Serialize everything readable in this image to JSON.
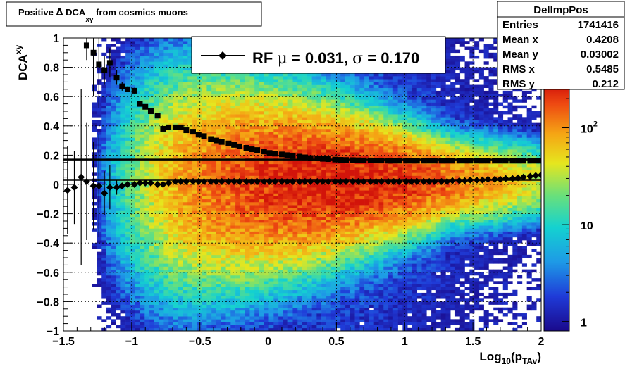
{
  "chart_data": {
    "type": "heatmap",
    "title": {
      "prefix": "Positive ",
      "delta": "Δ",
      "dca": " DCA",
      "sub": "xy",
      "suffix": " from cosmics muons"
    },
    "xlabel": {
      "base": "Log",
      "sub1": "10",
      "paren": "(p",
      "sub2": "TAv",
      "close": ")"
    },
    "ylabel": {
      "base": "DCA",
      "sub": "xy"
    },
    "xlim": [
      -1.5,
      2
    ],
    "ylim": [
      -1,
      1
    ],
    "x_ticks": [
      {
        "v": -1.5,
        "label": "−1.5"
      },
      {
        "v": -1,
        "label": "−1"
      },
      {
        "v": -0.5,
        "label": "−0.5"
      },
      {
        "v": 0,
        "label": "0"
      },
      {
        "v": 0.5,
        "label": "0.5"
      },
      {
        "v": 1,
        "label": "1"
      },
      {
        "v": 1.5,
        "label": "1.5"
      },
      {
        "v": 2,
        "label": "2"
      }
    ],
    "y_ticks": [
      {
        "v": -1,
        "label": "−1"
      },
      {
        "v": -0.8,
        "label": "−0.8"
      },
      {
        "v": -0.6,
        "label": "−0.6"
      },
      {
        "v": -0.4,
        "label": "−0.4"
      },
      {
        "v": -0.2,
        "label": "−0.2"
      },
      {
        "v": 0,
        "label": "0"
      },
      {
        "v": 0.2,
        "label": "0.2"
      },
      {
        "v": 0.4,
        "label": "0.4"
      },
      {
        "v": 0.6,
        "label": "0.6"
      },
      {
        "v": 0.8,
        "label": "0.8"
      },
      {
        "v": 1,
        "label": "1"
      }
    ],
    "colorbar": {
      "min": 0.8,
      "max": 280,
      "log": true,
      "ticks": [
        {
          "v": 1,
          "label": "1"
        },
        {
          "v": 10,
          "label": "10"
        },
        {
          "v": 100,
          "label": "10",
          "sup": "2"
        }
      ]
    },
    "grid": true,
    "density_model": {
      "ridge_y": 0.02,
      "peak_count": 280,
      "peak_x": 0.5,
      "onset_x": -1.3
    },
    "legend": {
      "label": "RF ",
      "mu": "μ",
      "mu_text": " =  0.031, ",
      "sigma": "σ",
      "sigma_text": " =   0.170"
    },
    "stats": {
      "title": "DelImpPos",
      "rows": [
        {
          "label": "Entries",
          "value": "1741416"
        },
        {
          "label": "Mean x",
          "value": "0.4208"
        },
        {
          "label": "Mean y",
          "value": "0.03002"
        },
        {
          "label": "RMS x",
          "value": "0.5485"
        },
        {
          "label": "RMS y",
          "value": "0.212"
        }
      ]
    },
    "fit_lines": [
      {
        "name": "mean",
        "y": 0.031
      },
      {
        "name": "sigma",
        "y": 0.17
      }
    ],
    "series": [
      {
        "name": "mean",
        "marker": "diamond",
        "x": [
          -1.47,
          -1.42,
          -1.37,
          -1.33,
          -1.28,
          -1.24,
          -1.2,
          -1.16,
          -1.11,
          -1.07,
          -1.03,
          -0.98,
          -0.94,
          -0.9,
          -0.86,
          -0.81,
          -0.77,
          -0.73,
          -0.68,
          -0.64,
          -0.6,
          -0.55,
          -0.51,
          -0.47,
          -0.42,
          -0.38,
          -0.34,
          -0.29,
          -0.25,
          -0.21,
          -0.16,
          -0.12,
          -0.08,
          -0.03,
          0.01,
          0.05,
          0.1,
          0.14,
          0.18,
          0.23,
          0.27,
          0.31,
          0.36,
          0.4,
          0.44,
          0.49,
          0.53,
          0.57,
          0.62,
          0.66,
          0.7,
          0.75,
          0.79,
          0.83,
          0.88,
          0.92,
          0.96,
          1.01,
          1.05,
          1.09,
          1.14,
          1.18,
          1.22,
          1.27,
          1.31,
          1.35,
          1.4,
          1.44,
          1.48,
          1.53,
          1.57,
          1.61,
          1.66,
          1.7,
          1.74,
          1.79,
          1.83,
          1.87,
          1.92,
          1.96,
          2.0
        ],
        "y": [
          -0.04,
          -0.02,
          0.05,
          0.02,
          -0.01,
          -0.01,
          -0.06,
          -0.02,
          -0.02,
          -0.01,
          0.0,
          0.0,
          0.01,
          0.01,
          0.01,
          0.0,
          0.0,
          0.01,
          0.02,
          0.02,
          0.02,
          0.02,
          0.02,
          0.02,
          0.02,
          0.02,
          0.02,
          0.02,
          0.02,
          0.02,
          0.02,
          0.02,
          0.02,
          0.02,
          0.02,
          0.02,
          0.02,
          0.02,
          0.02,
          0.02,
          0.02,
          0.02,
          0.02,
          0.02,
          0.02,
          0.02,
          0.02,
          0.02,
          0.02,
          0.02,
          0.02,
          0.02,
          0.02,
          0.02,
          0.02,
          0.02,
          0.02,
          0.02,
          0.02,
          0.02,
          0.02,
          0.02,
          0.02,
          0.02,
          0.02,
          0.025,
          0.025,
          0.025,
          0.03,
          0.03,
          0.03,
          0.035,
          0.035,
          0.035,
          0.04,
          0.04,
          0.045,
          0.05,
          0.055,
          0.06,
          0.065
        ],
        "yerr": [
          0.3,
          0.25,
          0.6,
          0.4,
          0.3,
          0.35,
          0.15,
          0.15,
          0.05,
          0.02,
          0.01,
          0.01,
          0.01,
          0.01,
          0.01,
          0.01,
          0.01,
          0.01,
          0.01,
          0.01,
          0.01,
          0.01,
          0.01,
          0.01,
          0.01,
          0.01,
          0.01,
          0.01,
          0.01,
          0.01,
          0.01,
          0.01,
          0.01,
          0.01,
          0.01,
          0.01,
          0.01,
          0.01,
          0.01,
          0.01,
          0.01,
          0.01,
          0.01,
          0.01,
          0.01,
          0.01,
          0.01,
          0.01,
          0.01,
          0.01,
          0.01,
          0.01,
          0.01,
          0.01,
          0.01,
          0.01,
          0.01,
          0.01,
          0.01,
          0.01,
          0.01,
          0.01,
          0.01,
          0.01,
          0.01,
          0.01,
          0.01,
          0.01,
          0.01,
          0.01,
          0.01,
          0.01,
          0.01,
          0.01,
          0.01,
          0.01,
          0.01,
          0.01,
          0.01,
          0.01,
          0.01
        ]
      },
      {
        "name": "rms",
        "marker": "square",
        "x": [
          -1.33,
          -1.28,
          -1.24,
          -1.2,
          -1.16,
          -1.11,
          -1.07,
          -1.03,
          -0.98,
          -0.94,
          -0.9,
          -0.86,
          -0.81,
          -0.77,
          -0.73,
          -0.68,
          -0.64,
          -0.6,
          -0.55,
          -0.51,
          -0.47,
          -0.42,
          -0.38,
          -0.34,
          -0.29,
          -0.25,
          -0.21,
          -0.16,
          -0.12,
          -0.08,
          -0.03,
          0.01,
          0.05,
          0.1,
          0.14,
          0.18,
          0.23,
          0.27,
          0.31,
          0.36,
          0.4,
          0.44,
          0.49,
          0.53,
          0.57,
          0.62,
          0.66,
          0.7,
          0.75,
          0.79,
          0.83,
          0.88,
          0.92,
          0.96,
          1.01,
          1.05,
          1.09,
          1.14,
          1.18,
          1.22,
          1.27,
          1.31,
          1.35,
          1.4,
          1.44,
          1.48,
          1.53,
          1.57,
          1.61,
          1.66,
          1.7,
          1.74,
          1.79,
          1.83,
          1.87,
          1.92,
          1.96,
          2.0
        ],
        "y": [
          0.95,
          0.9,
          0.82,
          0.78,
          0.83,
          0.73,
          0.67,
          0.65,
          0.64,
          0.55,
          0.53,
          0.5,
          0.47,
          0.38,
          0.39,
          0.39,
          0.39,
          0.37,
          0.36,
          0.34,
          0.33,
          0.31,
          0.3,
          0.29,
          0.28,
          0.27,
          0.26,
          0.25,
          0.24,
          0.235,
          0.225,
          0.215,
          0.21,
          0.205,
          0.2,
          0.195,
          0.19,
          0.185,
          0.18,
          0.178,
          0.175,
          0.173,
          0.17,
          0.168,
          0.167,
          0.166,
          0.165,
          0.164,
          0.164,
          0.163,
          0.163,
          0.162,
          0.162,
          0.162,
          0.162,
          0.162,
          0.162,
          0.162,
          0.162,
          0.162,
          0.162,
          0.162,
          0.162,
          0.162,
          0.162,
          0.162,
          0.162,
          0.162,
          0.162,
          0.162,
          0.162,
          0.162,
          0.162,
          0.162,
          0.162,
          0.162,
          0.162,
          0.162
        ],
        "yerr": [
          0.1,
          0.3,
          0.3,
          0.1,
          0.1,
          0.05,
          0.03,
          0.02,
          0.02,
          0.01,
          0.01,
          0.01,
          0.01,
          0.01,
          0.01,
          0.01,
          0.01,
          0.01,
          0.01,
          0.01,
          0.01,
          0.01,
          0.01,
          0.01,
          0.01,
          0.01,
          0.01,
          0.01,
          0.01,
          0.01,
          0.01,
          0.01,
          0.01,
          0.01,
          0.01,
          0.01,
          0.01,
          0.01,
          0.01,
          0.01,
          0.01,
          0.01,
          0.01,
          0.01,
          0.01,
          0.01,
          0.01,
          0.01,
          0.01,
          0.01,
          0.01,
          0.01,
          0.01,
          0.01,
          0.01,
          0.01,
          0.01,
          0.01,
          0.01,
          0.01,
          0.01,
          0.01,
          0.01,
          0.01,
          0.01,
          0.01,
          0.01,
          0.01,
          0.01,
          0.01,
          0.01,
          0.01,
          0.01,
          0.01,
          0.01,
          0.01,
          0.01,
          0.01
        ]
      }
    ]
  }
}
